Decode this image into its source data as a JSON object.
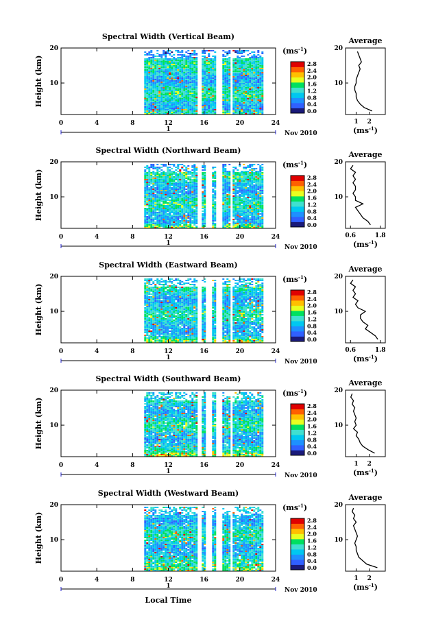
{
  "figure": {
    "time_axis_label": "Local Time",
    "date_label": "Nov 2010",
    "day_label": "1",
    "colorbar_unit": "(ms",
    "colorbar_unit_exp": "-1",
    "colorbar_unit_close": ")",
    "average_title": "Average",
    "average_xlabel": "(ms",
    "average_xlabel_exp": "-1",
    "average_xlabel_close": ")"
  },
  "colorscale": {
    "ticks": [
      "0.0",
      "0.4",
      "0.8",
      "1.2",
      "1.6",
      "2.0",
      "2.4",
      "2.8"
    ],
    "colors": [
      "#1a1a7a",
      "#3060ff",
      "#1e90ff",
      "#00c8f0",
      "#40e0d0",
      "#00e060",
      "#e8ff20",
      "#ffc000",
      "#ff6000",
      "#e00000"
    ]
  },
  "chart_data": [
    {
      "type": "heatmap",
      "title": "Spectral Width (Vertical Beam)",
      "ylabel": "Height (km)",
      "xlim": [
        0,
        24
      ],
      "ylim": [
        1,
        20
      ],
      "xticks": [
        0,
        4,
        8,
        12,
        16,
        20,
        24
      ],
      "yticks": [
        10,
        20
      ],
      "gaps_hours": [
        [
          15.3,
          15.7
        ],
        [
          16.8,
          17.0
        ],
        [
          17.4,
          18.0
        ],
        [
          19.0,
          19.2
        ]
      ],
      "data_start_hour": 9.3,
      "data_end_hour": 22.6,
      "average": {
        "type": "line",
        "title": "Average",
        "xlim": [
          0.2,
          3.2
        ],
        "xticks": [
          1,
          2
        ],
        "height_km": [
          2,
          3,
          4,
          5,
          6,
          7,
          8,
          9,
          10,
          11,
          12,
          13,
          14,
          15,
          16,
          17,
          18,
          19
        ],
        "value": [
          2.2,
          1.6,
          1.3,
          1.1,
          1.0,
          1.0,
          0.9,
          0.9,
          1.0,
          1.0,
          1.1,
          1.2,
          1.3,
          1.2,
          1.4,
          1.3,
          1.2,
          1.1
        ]
      }
    },
    {
      "type": "heatmap",
      "title": "Spectral Width (Northward Beam)",
      "ylabel": "Height (km)",
      "xlim": [
        0,
        24
      ],
      "ylim": [
        1,
        20
      ],
      "xticks": [
        0,
        4,
        8,
        12,
        16,
        20,
        24
      ],
      "yticks": [
        10,
        20
      ],
      "gaps_hours": [
        [
          15.3,
          15.7
        ],
        [
          16.3,
          17.0
        ],
        [
          17.4,
          18.0
        ],
        [
          19.0,
          19.2
        ]
      ],
      "data_start_hour": 9.3,
      "data_end_hour": 22.6,
      "average": {
        "type": "line",
        "title": "Average",
        "xlim": [
          0.4,
          2.0
        ],
        "xticks": [
          0.6,
          1.8
        ],
        "height_km": [
          2,
          3,
          4,
          5,
          6,
          7,
          8,
          9,
          10,
          11,
          12,
          13,
          14,
          15,
          16,
          17,
          18,
          19
        ],
        "value": [
          1.4,
          1.3,
          1.1,
          1.0,
          0.9,
          0.8,
          1.1,
          0.8,
          0.8,
          0.7,
          0.8,
          0.8,
          0.7,
          0.8,
          0.7,
          0.8,
          0.6,
          0.7
        ]
      }
    },
    {
      "type": "heatmap",
      "title": "Spectral Width (Eastward Beam)",
      "ylabel": "Height (km)",
      "xlim": [
        0,
        24
      ],
      "ylim": [
        1,
        20
      ],
      "xticks": [
        0,
        4,
        8,
        12,
        16,
        20,
        24
      ],
      "yticks": [
        10,
        20
      ],
      "gaps_hours": [
        [
          15.3,
          15.7
        ],
        [
          16.3,
          17.0
        ],
        [
          17.4,
          18.0
        ],
        [
          19.0,
          19.2
        ]
      ],
      "data_start_hour": 9.3,
      "data_end_hour": 22.6,
      "average": {
        "type": "line",
        "title": "Average",
        "xlim": [
          0.4,
          2.0
        ],
        "xticks": [
          0.6,
          1.8
        ],
        "height_km": [
          2,
          3,
          4,
          5,
          6,
          7,
          8,
          9,
          10,
          11,
          12,
          13,
          14,
          15,
          16,
          17,
          18,
          19
        ],
        "value": [
          1.7,
          1.6,
          1.4,
          1.2,
          1.3,
          1.1,
          1.0,
          1.0,
          1.2,
          0.9,
          0.8,
          0.9,
          0.7,
          0.8,
          0.7,
          0.8,
          0.6,
          0.7
        ]
      }
    },
    {
      "type": "heatmap",
      "title": "Spectral Width (Southward Beam)",
      "ylabel": "Height (km)",
      "xlim": [
        0,
        24
      ],
      "ylim": [
        1,
        20
      ],
      "xticks": [
        0,
        4,
        8,
        12,
        16,
        20,
        24
      ],
      "yticks": [
        10,
        20
      ],
      "gaps_hours": [
        [
          15.3,
          15.7
        ],
        [
          16.3,
          17.0
        ],
        [
          17.4,
          18.0
        ],
        [
          19.0,
          19.2
        ]
      ],
      "data_start_hour": 9.3,
      "data_end_hour": 22.6,
      "average": {
        "type": "line",
        "title": "Average",
        "xlim": [
          0.2,
          3.2
        ],
        "xticks": [
          1,
          2
        ],
        "height_km": [
          2,
          3,
          4,
          5,
          6,
          7,
          8,
          9,
          10,
          11,
          12,
          13,
          14,
          15,
          16,
          17,
          18,
          19
        ],
        "value": [
          2.4,
          1.9,
          1.5,
          1.3,
          1.2,
          1.0,
          1.1,
          0.8,
          1.0,
          0.9,
          1.0,
          0.9,
          0.8,
          0.9,
          0.7,
          0.8,
          0.6,
          0.7
        ]
      }
    },
    {
      "type": "heatmap",
      "title": "Spectral Width (Westward Beam)",
      "ylabel": "Height (km)",
      "xlim": [
        0,
        24
      ],
      "ylim": [
        1,
        20
      ],
      "xticks": [
        0,
        4,
        8,
        12,
        16,
        20,
        24
      ],
      "yticks": [
        10,
        20
      ],
      "gaps_hours": [
        [
          15.3,
          15.7
        ],
        [
          16.3,
          17.0
        ],
        [
          17.4,
          18.0
        ],
        [
          19.0,
          19.2
        ]
      ],
      "data_start_hour": 9.3,
      "data_end_hour": 22.6,
      "average": {
        "type": "line",
        "title": "Average",
        "xlim": [
          0.2,
          3.2
        ],
        "xticks": [
          1,
          2
        ],
        "height_km": [
          2,
          3,
          4,
          5,
          6,
          7,
          8,
          9,
          10,
          11,
          12,
          13,
          14,
          15,
          16,
          17,
          18,
          19
        ],
        "value": [
          2.6,
          1.8,
          1.5,
          1.2,
          1.1,
          1.0,
          1.0,
          0.9,
          1.0,
          1.1,
          1.0,
          0.9,
          0.8,
          1.0,
          0.8,
          0.9,
          0.7,
          0.8
        ]
      }
    }
  ]
}
